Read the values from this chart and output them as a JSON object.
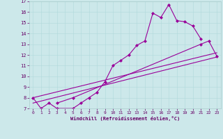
{
  "xlabel": "Windchill (Refroidissement éolien,°C)",
  "background_color": "#cce8ea",
  "line_color": "#990099",
  "xlim": [
    -0.5,
    23.5
  ],
  "ylim": [
    7,
    17
  ],
  "xticks": [
    0,
    1,
    2,
    3,
    4,
    5,
    6,
    7,
    8,
    9,
    10,
    11,
    12,
    13,
    14,
    15,
    16,
    17,
    18,
    19,
    20,
    21,
    22,
    23
  ],
  "yticks": [
    7,
    8,
    9,
    10,
    11,
    12,
    13,
    14,
    15,
    16,
    17
  ],
  "series": [
    {
      "x": [
        0,
        1,
        2,
        3,
        5,
        6,
        7,
        8,
        9,
        10,
        11,
        12,
        13,
        14,
        15,
        16,
        17,
        18,
        19,
        20,
        21
      ],
      "y": [
        8.0,
        7.0,
        7.5,
        7.0,
        7.0,
        7.5,
        8.0,
        8.5,
        9.5,
        11.0,
        11.5,
        12.0,
        12.9,
        13.3,
        15.9,
        15.5,
        16.7,
        15.2,
        15.1,
        14.7,
        13.5
      ],
      "marker": "D",
      "markersize": 2
    },
    {
      "x": [
        3,
        5,
        21,
        22,
        23
      ],
      "y": [
        7.5,
        8.0,
        13.0,
        13.3,
        11.9
      ],
      "marker": "D",
      "markersize": 2
    },
    {
      "x": [
        0,
        23
      ],
      "y": [
        7.5,
        11.8
      ],
      "marker": null,
      "markersize": 0
    },
    {
      "x": [
        0,
        23
      ],
      "y": [
        8.0,
        12.2
      ],
      "marker": null,
      "markersize": 0
    }
  ]
}
